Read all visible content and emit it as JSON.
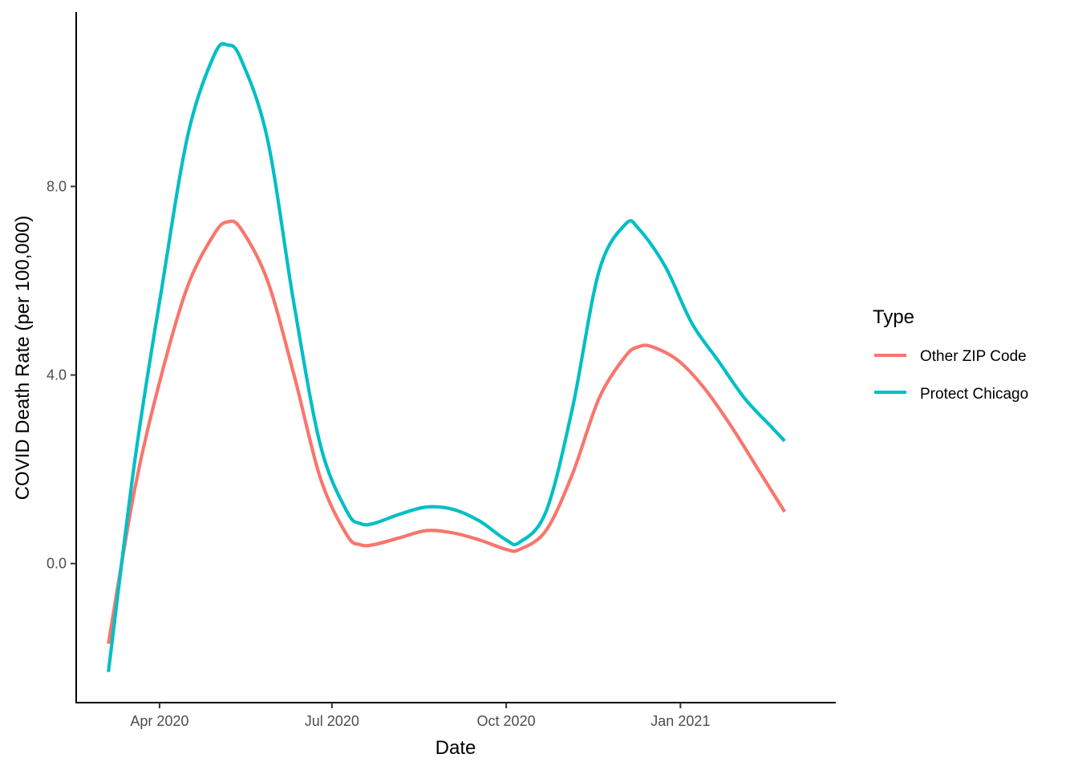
{
  "chart_data": {
    "type": "line",
    "xlabel": "Date",
    "ylabel": "COVID Death Rate (per 100,000)",
    "xlim": [
      "2020-02-17",
      "2021-03-24"
    ],
    "ylim": [
      -2.95,
      11.7
    ],
    "x_ticks": [
      {
        "date": "2020-04-01",
        "label": "Apr 2020"
      },
      {
        "date": "2020-07-01",
        "label": "Jul 2020"
      },
      {
        "date": "2020-10-01",
        "label": "Oct 2020"
      },
      {
        "date": "2021-01-01",
        "label": "Jan 2021"
      }
    ],
    "y_ticks": [
      {
        "value": 0,
        "label": "0.0"
      },
      {
        "value": 4,
        "label": "4.0"
      },
      {
        "value": 8,
        "label": "8.0"
      }
    ],
    "grid": false,
    "legend": {
      "title": "Type",
      "position": "right"
    },
    "series": [
      {
        "name": "Other ZIP Code",
        "color": "#F8766D",
        "points": [
          [
            "2020-03-05",
            -1.7
          ],
          [
            "2020-03-19",
            1.6
          ],
          [
            "2020-04-02",
            4.0
          ],
          [
            "2020-04-16",
            5.9
          ],
          [
            "2020-04-30",
            7.0
          ],
          [
            "2020-05-07",
            7.25
          ],
          [
            "2020-05-14",
            7.1
          ],
          [
            "2020-05-28",
            6.0
          ],
          [
            "2020-06-11",
            4.0
          ],
          [
            "2020-06-25",
            1.8
          ],
          [
            "2020-07-09",
            0.6
          ],
          [
            "2020-07-16",
            0.4
          ],
          [
            "2020-07-23",
            0.4
          ],
          [
            "2020-08-06",
            0.55
          ],
          [
            "2020-08-20",
            0.7
          ],
          [
            "2020-09-03",
            0.65
          ],
          [
            "2020-09-17",
            0.5
          ],
          [
            "2020-10-01",
            0.3
          ],
          [
            "2020-10-08",
            0.3
          ],
          [
            "2020-10-22",
            0.7
          ],
          [
            "2020-11-05",
            1.9
          ],
          [
            "2020-11-19",
            3.5
          ],
          [
            "2020-12-03",
            4.4
          ],
          [
            "2020-12-10",
            4.6
          ],
          [
            "2020-12-17",
            4.6
          ],
          [
            "2020-12-31",
            4.3
          ],
          [
            "2021-01-14",
            3.7
          ],
          [
            "2021-01-28",
            2.9
          ],
          [
            "2021-02-11",
            2.0
          ],
          [
            "2021-02-25",
            1.1
          ]
        ]
      },
      {
        "name": "Protect Chicago",
        "color": "#00BFC4",
        "points": [
          [
            "2020-03-05",
            -2.3
          ],
          [
            "2020-03-19",
            2.2
          ],
          [
            "2020-04-02",
            5.8
          ],
          [
            "2020-04-16",
            9.1
          ],
          [
            "2020-04-30",
            10.8
          ],
          [
            "2020-05-07",
            11.0
          ],
          [
            "2020-05-14",
            10.7
          ],
          [
            "2020-05-28",
            9.0
          ],
          [
            "2020-06-11",
            5.5
          ],
          [
            "2020-06-25",
            2.5
          ],
          [
            "2020-07-09",
            1.1
          ],
          [
            "2020-07-16",
            0.85
          ],
          [
            "2020-07-23",
            0.85
          ],
          [
            "2020-08-06",
            1.05
          ],
          [
            "2020-08-20",
            1.2
          ],
          [
            "2020-09-03",
            1.15
          ],
          [
            "2020-09-17",
            0.9
          ],
          [
            "2020-10-01",
            0.5
          ],
          [
            "2020-10-08",
            0.45
          ],
          [
            "2020-10-22",
            1.1
          ],
          [
            "2020-11-05",
            3.3
          ],
          [
            "2020-11-19",
            6.2
          ],
          [
            "2020-12-03",
            7.2
          ],
          [
            "2020-12-10",
            7.1
          ],
          [
            "2020-12-24",
            6.3
          ],
          [
            "2021-01-07",
            5.1
          ],
          [
            "2021-01-21",
            4.3
          ],
          [
            "2021-02-04",
            3.5
          ],
          [
            "2021-02-18",
            2.9
          ],
          [
            "2021-02-25",
            2.6
          ]
        ]
      }
    ]
  }
}
